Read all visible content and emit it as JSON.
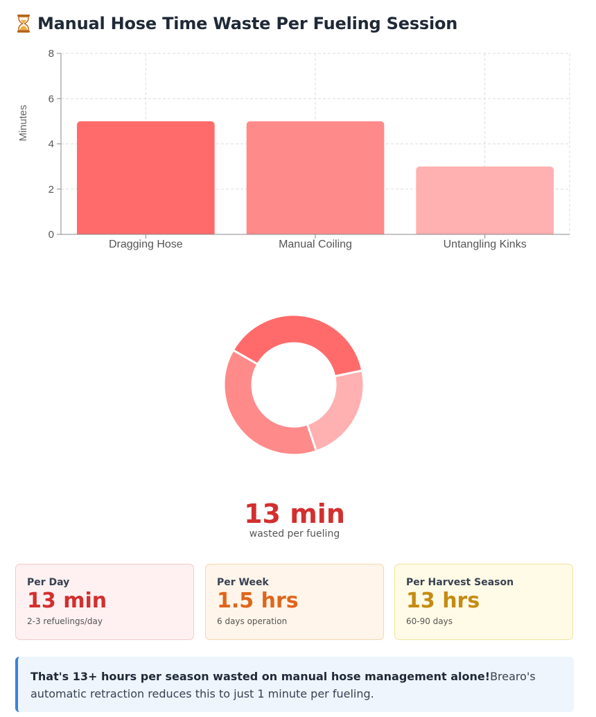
{
  "header": {
    "title": "Manual Hose Time Waste Per Fueling Session",
    "icon": "hourglass-icon"
  },
  "chart_data": [
    {
      "type": "bar",
      "categories": [
        "Dragging Hose",
        "Manual Coiling",
        "Untangling Kinks"
      ],
      "values": [
        5,
        5,
        3
      ],
      "colors": [
        "#ff6b6b",
        "#ff8a8a",
        "#ffb0b0"
      ],
      "ylabel": "Minutes",
      "ylim": [
        0,
        8
      ],
      "yticks": [
        0,
        2,
        4,
        6,
        8
      ],
      "grid": true,
      "legend": "none"
    },
    {
      "type": "pie",
      "style": "donut",
      "categories": [
        "Dragging Hose",
        "Manual Coiling",
        "Untangling Kinks"
      ],
      "values": [
        5,
        5,
        3
      ],
      "colors": [
        "#ff6b6b",
        "#ff8a8a",
        "#ffb0b0"
      ],
      "legend": "none"
    }
  ],
  "total": {
    "value": "13 min",
    "label": "wasted per fueling"
  },
  "cards": [
    {
      "label": "Per Day",
      "value": "13 min",
      "sub": "2-3 refuelings/day"
    },
    {
      "label": "Per Week",
      "value": "1.5 hrs",
      "sub": "6 days operation"
    },
    {
      "label": "Per Harvest Season",
      "value": "13 hrs",
      "sub": "60-90 days"
    }
  ],
  "note": {
    "strong": "That's 13+ hours per season wasted on manual hose management alone!",
    "text": "Brearo's automatic retraction reduces this to just 1 minute per fueling."
  }
}
